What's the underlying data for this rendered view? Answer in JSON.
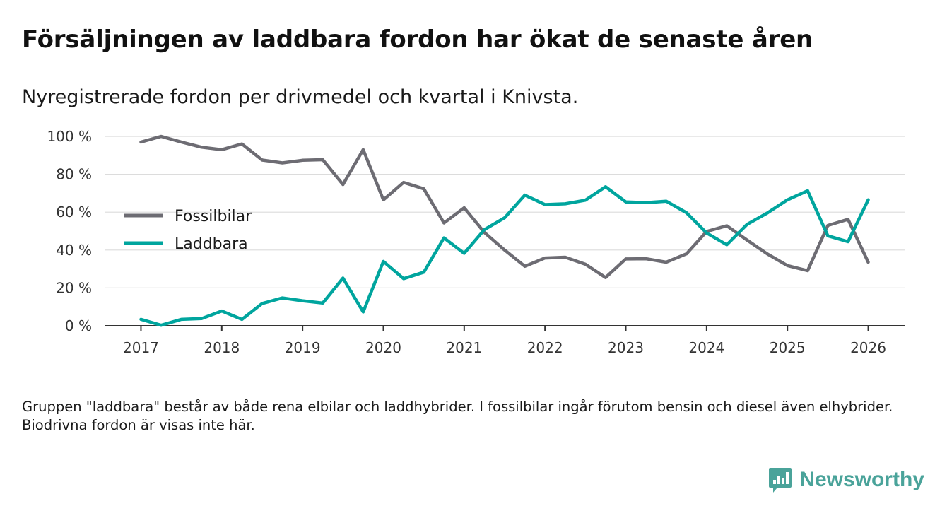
{
  "title": "Försäljningen av laddbara fordon har ökat de senaste åren",
  "subtitle": "Nyregistrerade fordon per drivmedel och kvartal i Knivsta.",
  "footnote": "Gruppen \"laddbara\" består av både rena elbilar och laddhybrider. I fossilbilar ingår förutom bensin och diesel även elhybrider. Biodrivna fordon är visas inte här.",
  "brand": {
    "name": "Newsworthy",
    "icon": "newsworthy-logo-icon",
    "color": "#4aa39a"
  },
  "chart_data": {
    "type": "line",
    "title": "Nyregistrerade fordon per drivmedel och kvartal i Knivsta.",
    "xlabel": "",
    "ylabel": "",
    "x": [
      2017.0,
      2017.25,
      2017.5,
      2017.75,
      2018.0,
      2018.25,
      2018.5,
      2018.75,
      2019.0,
      2019.25,
      2019.5,
      2019.75,
      2020.0,
      2020.25,
      2020.5,
      2020.75,
      2021.0,
      2021.25,
      2021.5,
      2021.75,
      2022.0,
      2022.25,
      2022.5,
      2022.75,
      2023.0,
      2023.25,
      2023.5,
      2023.75,
      2024.0,
      2024.25,
      2024.5,
      2024.75,
      2025.0,
      2025.25,
      2025.5,
      2025.75,
      2026.0
    ],
    "xlim": [
      2016.55,
      2026.45
    ],
    "ylim": [
      0,
      100
    ],
    "x_ticks": [
      2017,
      2018,
      2019,
      2020,
      2021,
      2022,
      2023,
      2024,
      2025,
      2026
    ],
    "x_tick_labels": [
      "2017",
      "2018",
      "2019",
      "2020",
      "2021",
      "2022",
      "2023",
      "2024",
      "2025",
      "2026"
    ],
    "y_ticks": [
      0,
      20,
      40,
      60,
      80,
      100
    ],
    "y_tick_labels": [
      "0 %",
      "20 %",
      "40 %",
      "60 %",
      "80 %",
      "100 %"
    ],
    "grid": true,
    "legend_position": "middle-left",
    "series": [
      {
        "name": "Fossilbilar",
        "color": "#6d6c73",
        "values": [
          97,
          100,
          97,
          94.3,
          93,
          96,
          87.5,
          86,
          87.4,
          87.7,
          74.6,
          93,
          66.5,
          75.7,
          72.3,
          54.3,
          62.3,
          49.3,
          40,
          31.4,
          35.8,
          36.2,
          32.5,
          25.5,
          35.3,
          35.4,
          33.6,
          38,
          49.8,
          52.8,
          45.3,
          38,
          31.8,
          29.1,
          53,
          56.2,
          33.6
        ]
      },
      {
        "name": "Laddbara",
        "color": "#00a59e",
        "values": [
          3.4,
          0.3,
          3.4,
          3.8,
          7.8,
          3.4,
          11.8,
          14.7,
          13.2,
          12,
          25.2,
          7.3,
          34,
          24.9,
          28.3,
          46.4,
          38.3,
          50.8,
          57,
          69,
          64,
          64.4,
          66.3,
          73.4,
          65.4,
          65,
          65.8,
          59.7,
          49,
          42.8,
          53.5,
          59.5,
          66.5,
          71.3,
          47.5,
          44.4,
          66.5
        ]
      }
    ]
  }
}
